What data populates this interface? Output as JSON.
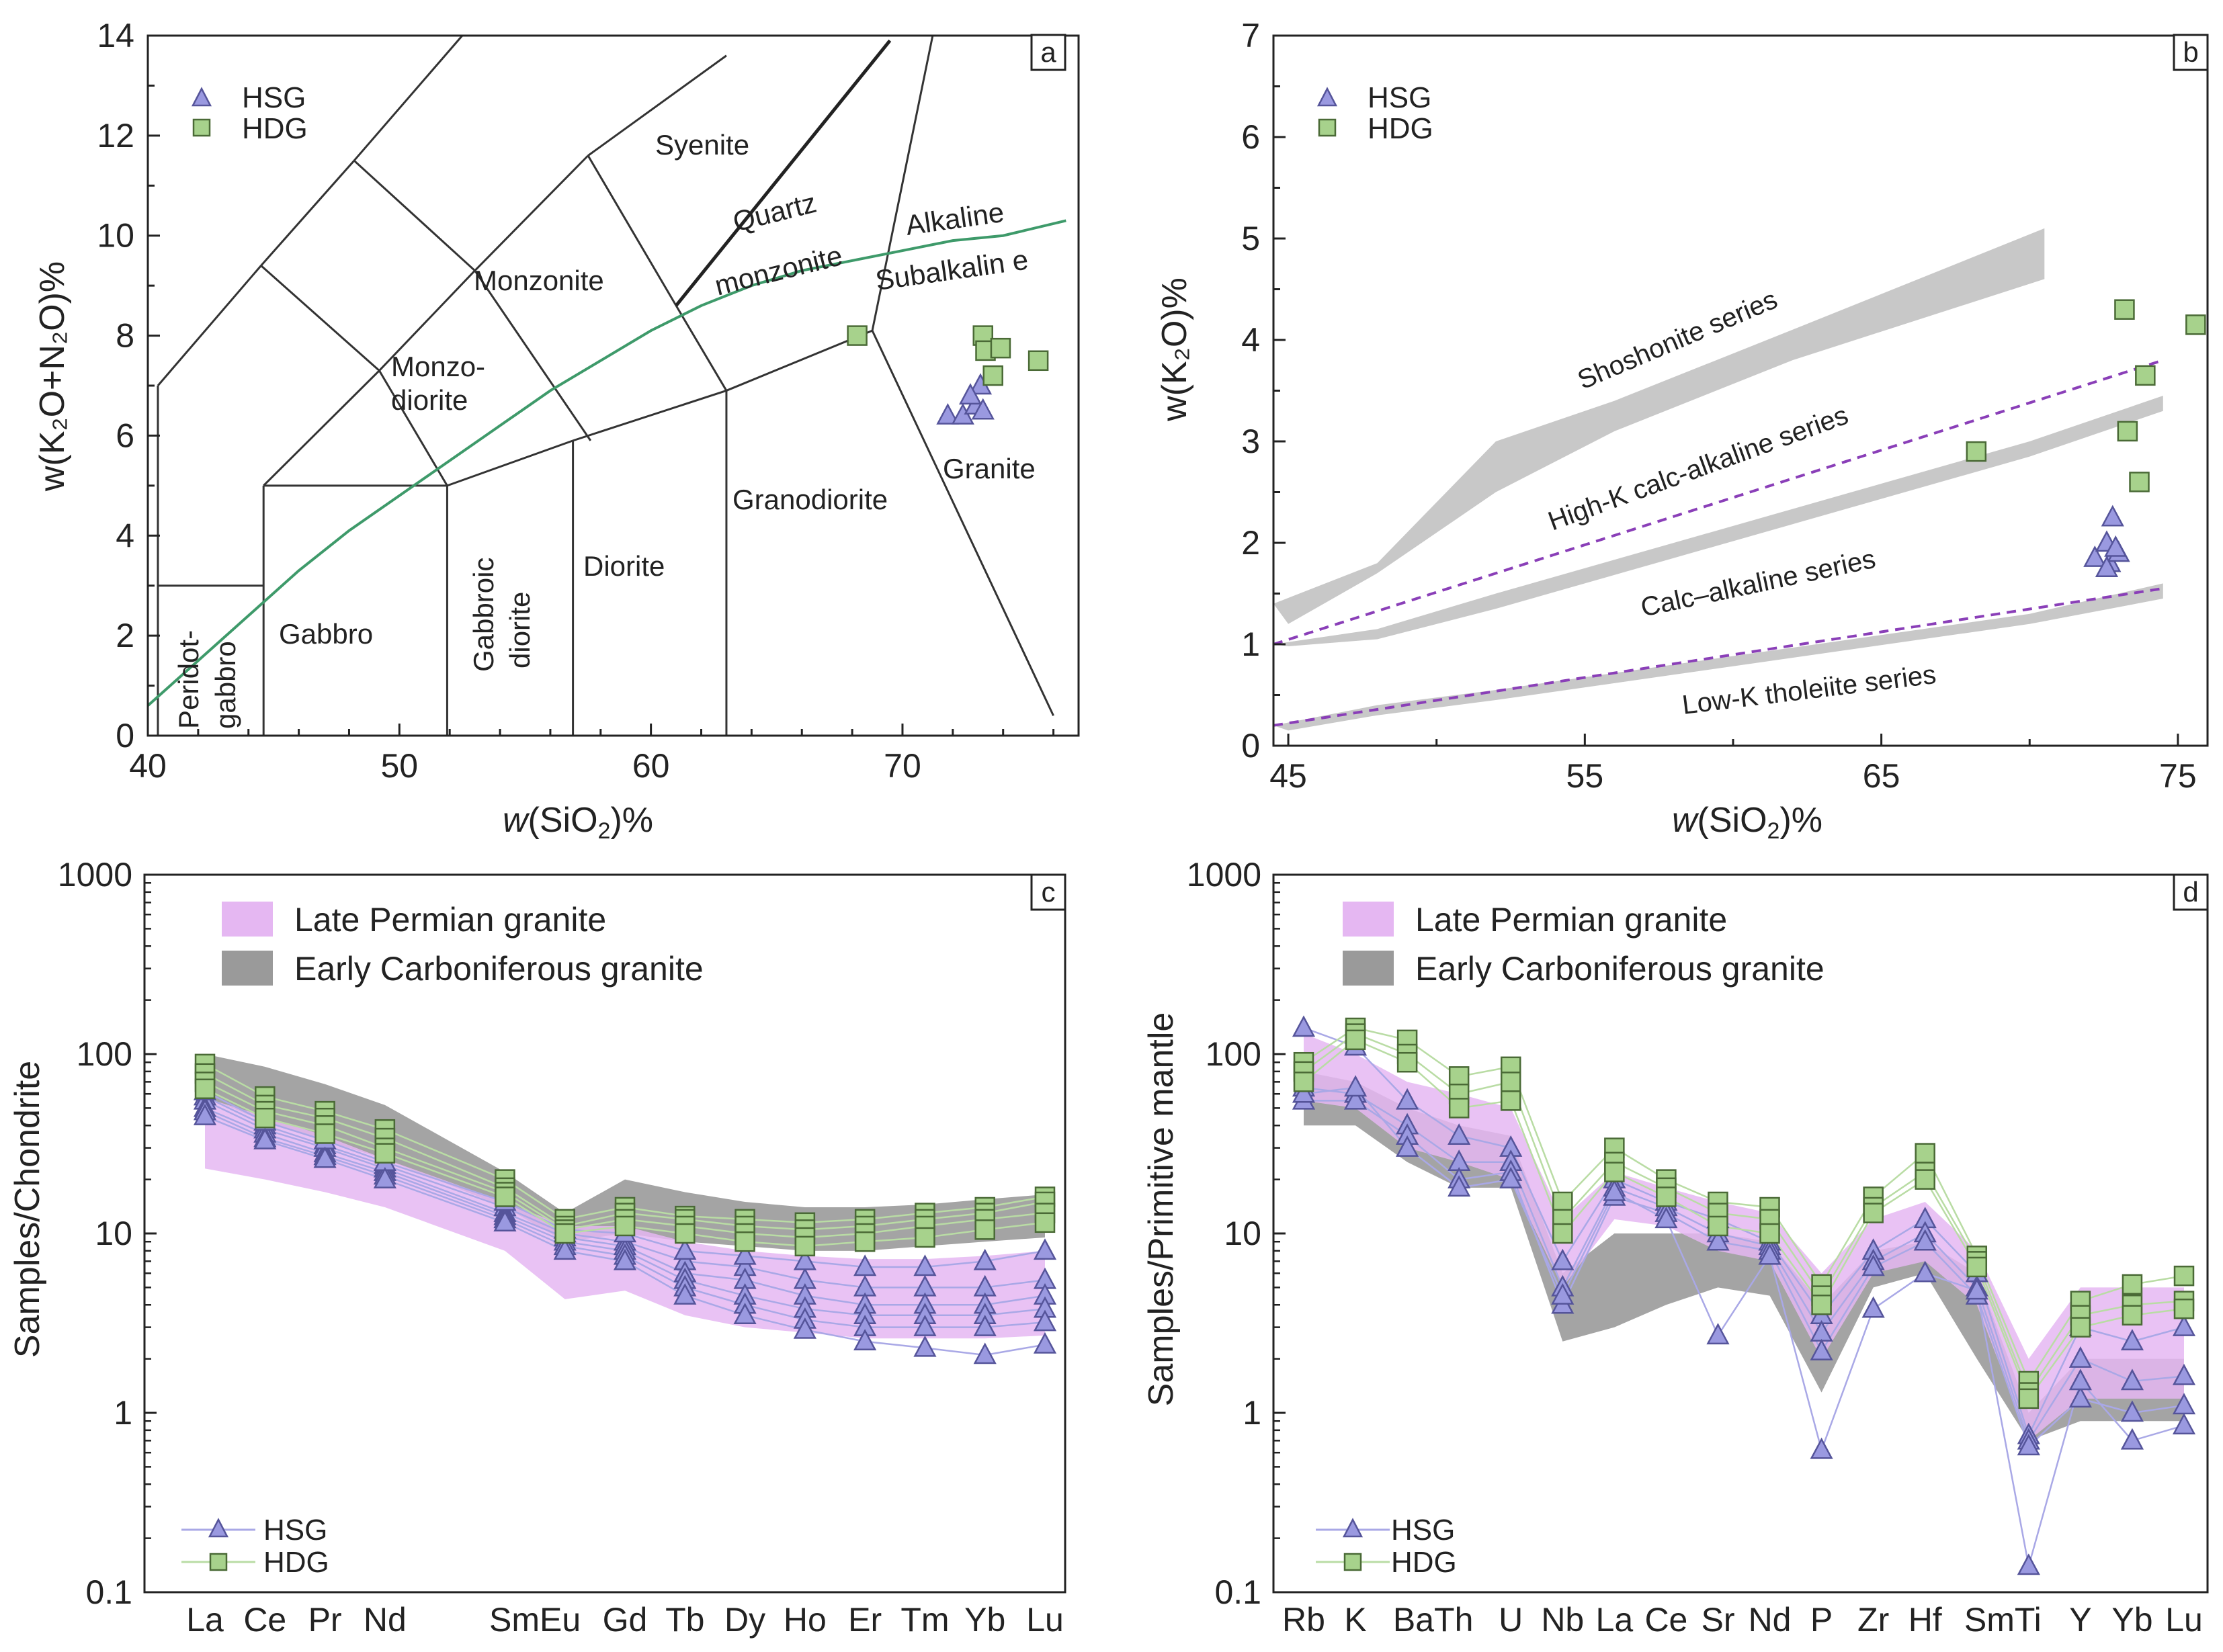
{
  "colors": {
    "hsg_fill": "#9a99e0",
    "hsg_stroke": "#55549a",
    "hdg_fill": "#a7d28c",
    "hdg_stroke": "#4a6a36",
    "hsg_line": "#a9a8e6",
    "hdg_line": "#b9dca4",
    "late_permian": "#e5b7f2",
    "early_carb": "#9a9a9a",
    "band": "#c8c8c8",
    "dashed": "#8a3fb8",
    "alk_line": "#3e9a6a"
  },
  "chart_data": [
    {
      "id": "a",
      "type": "scatter",
      "panel_label": "a",
      "xlabel_pre": "w",
      "xlabel_main": "(SiO",
      "xlabel_sub": "2",
      "xlabel_post": ")%",
      "ylabel": "w(K₂O+N₂O)%",
      "xlim": [
        40,
        77
      ],
      "ylim": [
        0,
        14
      ],
      "xticks": [
        40,
        50,
        60,
        70
      ],
      "yticks": [
        0,
        2,
        4,
        6,
        8,
        10,
        12,
        14
      ],
      "legend": [
        {
          "name": "HSG",
          "marker": "triangle"
        },
        {
          "name": "HDG",
          "marker": "square"
        }
      ],
      "fields": [
        "Syenite",
        "Quartz",
        "monzonite",
        "Alkaline",
        "Subalkalin e",
        "Monzonite",
        "Monzo-",
        "diorite",
        "Granite",
        "Granodiorite",
        "Diorite",
        "Gabbroic",
        "diorite",
        "Gabbro",
        "Peridot-",
        "gabbro"
      ],
      "series": [
        {
          "name": "HSG",
          "marker": "triangle",
          "points": [
            [
              71.8,
              6.4
            ],
            [
              72.4,
              6.4
            ],
            [
              72.9,
              6.6
            ],
            [
              73.1,
              7.0
            ],
            [
              73.2,
              6.5
            ],
            [
              72.7,
              6.8
            ]
          ]
        },
        {
          "name": "HDG",
          "marker": "square",
          "points": [
            [
              68.2,
              8.0
            ],
            [
              73.2,
              8.0
            ],
            [
              73.3,
              7.7
            ],
            [
              73.9,
              7.75
            ],
            [
              73.6,
              7.2
            ],
            [
              75.4,
              7.5
            ]
          ]
        }
      ]
    },
    {
      "id": "b",
      "type": "scatter",
      "panel_label": "b",
      "xlabel_pre": "w",
      "xlabel_main": "(SiO",
      "xlabel_sub": "2",
      "xlabel_post": ")%",
      "ylabel": "w(K₂O)%",
      "xlim": [
        44.5,
        76
      ],
      "ylim": [
        0,
        7
      ],
      "xticks": [
        45,
        55,
        65,
        75
      ],
      "yticks": [
        0,
        1,
        2,
        3,
        4,
        5,
        6,
        7
      ],
      "legend": [
        {
          "name": "HSG",
          "marker": "triangle"
        },
        {
          "name": "HDG",
          "marker": "square"
        }
      ],
      "series_labels": [
        "Shoshonite series",
        "High-K calc-alkaline series",
        "Calc‒alkaline series",
        "Low-K tholeiite series"
      ],
      "series": [
        {
          "name": "HSG",
          "marker": "triangle",
          "points": [
            [
              72.2,
              1.85
            ],
            [
              72.6,
              2.0
            ],
            [
              72.8,
              2.25
            ],
            [
              72.7,
              1.8
            ],
            [
              73.0,
              1.9
            ],
            [
              72.9,
              1.95
            ],
            [
              72.6,
              1.75
            ]
          ]
        },
        {
          "name": "HDG",
          "marker": "square",
          "points": [
            [
              68.2,
              2.9
            ],
            [
              73.2,
              4.3
            ],
            [
              73.9,
              3.65
            ],
            [
              73.3,
              3.1
            ],
            [
              73.7,
              2.6
            ],
            [
              75.6,
              4.15
            ]
          ]
        }
      ]
    },
    {
      "id": "c",
      "type": "line",
      "panel_label": "c",
      "ylabel": "Samples/Chondrite",
      "yscale": "log",
      "ylim": [
        0.1,
        1000
      ],
      "ytick_labels": [
        "0.1",
        "1",
        "10",
        "100",
        "1000"
      ],
      "categories": [
        "La",
        "Ce",
        "Pr",
        "Nd",
        "",
        "Sm",
        "Eu",
        "Gd",
        "Tb",
        "Dy",
        "Ho",
        "Er",
        "Tm",
        "Yb",
        "Lu"
      ],
      "xtick_labels": [
        "La",
        "Ce",
        "Pr",
        "Nd",
        "SmEu",
        "Gd",
        "Tb",
        "Dy",
        "Ho",
        "Er",
        "Tm",
        "Yb",
        "Lu"
      ],
      "legend_fields": [
        "Late Permian granite",
        "Early Carboniferous granite"
      ],
      "legend_lines": [
        "HSG",
        "HDG"
      ],
      "late_permian_band": {
        "upper": [
          57,
          45,
          35,
          26,
          null,
          15,
          11,
          11,
          9,
          8,
          7.5,
          7.2,
          7.2,
          7.5,
          8
        ],
        "lower": [
          23,
          20,
          17,
          14,
          null,
          8,
          4.3,
          4.8,
          3.5,
          3.0,
          2.8,
          2.6,
          2.6,
          2.6,
          2.7
        ]
      },
      "early_carb_band": {
        "upper": [
          100,
          85,
          68,
          52,
          null,
          22,
          13,
          20,
          17,
          15,
          14,
          14,
          14.5,
          15.5,
          16.5
        ],
        "lower": [
          58,
          42,
          33,
          26,
          null,
          14,
          9,
          10,
          9,
          8.5,
          8,
          8,
          8.5,
          9,
          9.5
        ]
      },
      "series": [
        {
          "name": "HSG",
          "marker": "triangle",
          "samples": [
            [
              58,
              40,
              31,
              24,
              null,
              14,
              10,
              9,
              7,
              6.5,
              5.5,
              5,
              5,
              5,
              5.5
            ],
            [
              55,
              38,
              30,
              23,
              null,
              13,
              9.5,
              8.5,
              6,
              5.5,
              4.5,
              4,
              4,
              4,
              4.5
            ],
            [
              50,
              36,
              28,
              22,
              null,
              12.5,
              9,
              8,
              5.5,
              4.5,
              3.8,
              3.5,
              3.5,
              3.5,
              3.8
            ],
            [
              48,
              34,
              27,
              21,
              null,
              12,
              8.5,
              7.5,
              5,
              4,
              3.3,
              3,
              3,
              3,
              3.2
            ],
            [
              62,
              42,
              33,
              25,
              null,
              15,
              10.5,
              10,
              8,
              7.5,
              7,
              6.5,
              6.5,
              7,
              8
            ],
            [
              45,
              33,
              26,
              20,
              null,
              11.5,
              8,
              7,
              4.5,
              3.5,
              2.9,
              2.5,
              2.3,
              2.1,
              2.4
            ]
          ]
        },
        {
          "name": "HDG",
          "marker": "square",
          "samples": [
            [
              88,
              58,
              48,
              38,
              null,
              20,
              12,
              14,
              12.5,
              12,
              11.5,
              12,
              13,
              14,
              16
            ],
            [
              78,
              52,
              44,
              34,
              null,
              18,
              11,
              13,
              12,
              11,
              10.5,
              11,
              12,
              13,
              15
            ],
            [
              70,
              48,
              40,
              30,
              null,
              17,
              10.5,
              12,
              11,
              10,
              9.5,
              10,
              11,
              12,
              13
            ],
            [
              64,
              44,
              36,
              28,
              null,
              16,
              10,
              11,
              10,
              9,
              8.5,
              9,
              9.5,
              10.5,
              11.5
            ]
          ]
        }
      ]
    },
    {
      "id": "d",
      "type": "line",
      "panel_label": "d",
      "ylabel": "Samples/Primitive mantle",
      "yscale": "log",
      "ylim": [
        0.1,
        1000
      ],
      "ytick_labels": [
        "0.1",
        "1",
        "10",
        "100",
        "1000"
      ],
      "categories": [
        "Rb",
        "K",
        "Ba",
        "Th",
        "U",
        "Nb",
        "La",
        "Ce",
        "Sr",
        "Nd",
        "P",
        "Zr",
        "Hf",
        "Sm",
        "Ti",
        "Y",
        "Yb",
        "Lu"
      ],
      "xtick_labels": [
        "Rb",
        "K",
        "BaTh",
        "U",
        "Nb",
        "La",
        "Ce",
        "Sr",
        "Nd",
        "P",
        "Zr",
        "Hf",
        "SmTi",
        "Y",
        "Yb",
        "Lu"
      ],
      "legend_fields": [
        "Late Permian granite",
        "Early Carboniferous granite"
      ],
      "legend_lines": [
        "HSG",
        "HDG"
      ],
      "late_permian_band": {
        "upper": [
          130,
          100,
          70,
          60,
          50,
          12,
          22,
          18,
          15,
          13,
          6,
          12,
          15,
          8,
          2.0,
          5,
          5,
          5
        ],
        "lower": [
          55,
          50,
          30,
          25,
          20,
          5,
          12,
          11,
          8,
          7,
          2.0,
          6,
          7,
          4,
          0.7,
          1.2,
          1.2,
          1.2
        ]
      },
      "early_carb_band": {
        "upper": [
          80,
          70,
          50,
          40,
          35,
          6,
          10,
          10,
          10,
          9,
          4,
          8,
          9,
          6,
          1.0,
          2.0,
          2.0,
          2.0
        ],
        "lower": [
          40,
          40,
          25,
          18,
          18,
          2.5,
          3.0,
          4.0,
          5.0,
          4.5,
          1.3,
          5.0,
          6.0,
          2.0,
          0.7,
          0.9,
          0.9,
          0.9
        ]
      },
      "series": [
        {
          "name": "HSG",
          "marker": "triangle",
          "samples": [
            [
              140,
              110,
              55,
              35,
              30,
              7,
              20,
              15,
              12,
              9,
              3.5,
              8,
              12,
              6,
              0.75,
              3,
              2.5,
              3
            ],
            [
              65,
              60,
              40,
              25,
              25,
              5,
              18,
              14,
              10,
              8.5,
              2.8,
              7,
              10,
              5,
              0.7,
              2,
              1.5,
              1.6
            ],
            [
              55,
              55,
              35,
              20,
              22,
              4,
              16,
              13,
              9,
              8,
              2.2,
              6.5,
              9,
              4.5,
              0.65,
              1.2,
              1.0,
              1.1
            ],
            [
              60,
              65,
              30,
              18,
              20,
              4.5,
              17,
              12,
              2.7,
              7.5,
              0.62,
              3.8,
              6,
              4.8,
              0.14,
              1.5,
              0.7,
              0.85
            ]
          ]
        },
        {
          "name": "HDG",
          "marker": "square",
          "samples": [
            [
              90,
              140,
              120,
              75,
              85,
              15,
              30,
              20,
              15,
              14,
              5.2,
              16,
              28,
              7.5,
              1.5,
              4.2,
              5.2,
              5.8
            ],
            [
              80,
              130,
              100,
              60,
              70,
              12,
              25,
              18,
              13,
              12,
              4.5,
              14,
              22,
              7,
              1.3,
              3.5,
              4,
              4.2
            ],
            [
              70,
              120,
              90,
              50,
              55,
              10,
              22,
              16,
              11,
              10,
              4,
              13,
              20,
              6.5,
              1.2,
              3,
              3.5,
              3.8
            ]
          ]
        }
      ]
    }
  ]
}
